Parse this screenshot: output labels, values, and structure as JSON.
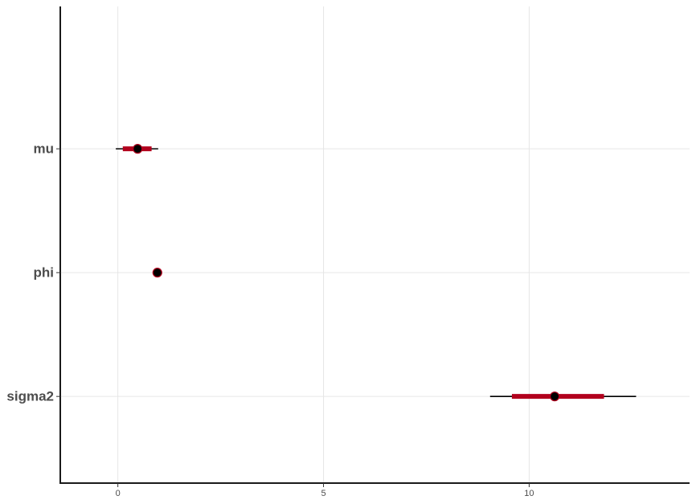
{
  "chart_data": {
    "type": "interval",
    "title": "",
    "xlabel": "",
    "ylabel": "",
    "xlim": [
      -1.4,
      13.9
    ],
    "xticks": [
      0,
      5,
      10
    ],
    "xtick_labels": [
      "0",
      "5",
      "10"
    ],
    "grid": true,
    "series": [
      {
        "name": "mu",
        "point": 0.48,
        "inner": [
          0.12,
          0.82
        ],
        "outer": [
          -0.05,
          0.98
        ]
      },
      {
        "name": "phi",
        "point": 0.96,
        "inner": [
          0.94,
          0.98
        ],
        "outer": [
          0.93,
          0.99
        ]
      },
      {
        "name": "sigma2",
        "point": 10.62,
        "inner": [
          9.58,
          11.82
        ],
        "outer": [
          9.05,
          12.6
        ]
      }
    ],
    "colors": {
      "inner_interval": "#b2001d",
      "outer_interval": "#000000",
      "point_fill": "#000000",
      "point_stroke": "#b2001d",
      "grid": "#e6e6e6",
      "axis": "#1a1a1a",
      "text": "#4d4d4d"
    }
  }
}
